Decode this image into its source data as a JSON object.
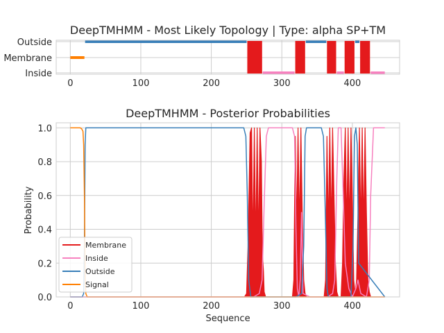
{
  "chart_data": [
    {
      "type": "line",
      "title": "DeepTMHMM - Most Likely Topology | Type: alpha SP+TM",
      "xlabel": "",
      "ylabel": "",
      "xlim": [
        -20,
        467
      ],
      "xticks": [
        0,
        100,
        200,
        300,
        400
      ],
      "categories": [
        "Inside",
        "Membrane",
        "Outside"
      ],
      "grid": true,
      "colors": {
        "Membrane": "#e41a1c",
        "Inside": "#f781bf",
        "Outside": "#377eb8",
        "Signal": "#ff7f00"
      },
      "segments": [
        {
          "label": "Signal",
          "start": 0,
          "end": 20
        },
        {
          "label": "Outside",
          "start": 21,
          "end": 250
        },
        {
          "label": "Membrane",
          "start": 251,
          "end": 272
        },
        {
          "label": "Inside",
          "start": 273,
          "end": 318
        },
        {
          "label": "Membrane",
          "start": 319,
          "end": 333
        },
        {
          "label": "Outside",
          "start": 334,
          "end": 363
        },
        {
          "label": "Membrane",
          "start": 364,
          "end": 377
        },
        {
          "label": "Inside",
          "start": 378,
          "end": 388
        },
        {
          "label": "Membrane",
          "start": 389,
          "end": 403
        },
        {
          "label": "Outside",
          "start": 404,
          "end": 410
        },
        {
          "label": "Membrane",
          "start": 411,
          "end": 425
        },
        {
          "label": "Inside",
          "start": 426,
          "end": 446
        }
      ]
    },
    {
      "type": "line",
      "title": "DeepTMHMM - Posterior Probabilities",
      "xlabel": "Sequence",
      "ylabel": "Probability",
      "xlim": [
        -20,
        467
      ],
      "ylim": [
        0,
        1.03
      ],
      "xticks": [
        0,
        100,
        200,
        300,
        400
      ],
      "yticks": [
        "0.0",
        "0.2",
        "0.4",
        "0.6",
        "0.8",
        "1.0"
      ],
      "grid": true,
      "legend_position": "lower-left",
      "legend": [
        "Membrane",
        "Inside",
        "Outside",
        "Signal"
      ],
      "series": [
        {
          "name": "Membrane",
          "color": "#e41a1c",
          "x": [
            0,
            247,
            250,
            252,
            255,
            257,
            259,
            261,
            263,
            265,
            267,
            269,
            271,
            272,
            273,
            274,
            275,
            277,
            280,
            315,
            317,
            319,
            321,
            323,
            325,
            327,
            329,
            331,
            333,
            335,
            337,
            360,
            362,
            364,
            366,
            368,
            370,
            372,
            374,
            376,
            378,
            380,
            384,
            386,
            388,
            390,
            392,
            394,
            396,
            398,
            400,
            402,
            404,
            406,
            408,
            410,
            412,
            414,
            416,
            418,
            420,
            422,
            424,
            426,
            428,
            430,
            446
          ],
          "y": [
            0,
            0,
            0.02,
            0.3,
            0.97,
            1.0,
            0.3,
            1.0,
            0.3,
            1.0,
            0.3,
            1.0,
            0.8,
            0.4,
            0.22,
            0.15,
            0.03,
            0.0,
            0.0,
            0.0,
            0.1,
            0.95,
            0.4,
            1.0,
            0.4,
            1.0,
            0.5,
            0.1,
            0.02,
            0.0,
            0.0,
            0.0,
            0.1,
            0.95,
            0.4,
            1.0,
            0.4,
            1.0,
            0.6,
            0.2,
            0.03,
            0.0,
            0.0,
            0.2,
            0.7,
            1.0,
            0.4,
            1.0,
            0.4,
            1.0,
            0.6,
            0.1,
            0.02,
            0.1,
            0.5,
            1.0,
            0.4,
            1.0,
            0.4,
            1.0,
            0.5,
            0.1,
            0.03,
            0.0,
            0.0,
            0.0,
            0.0
          ]
        },
        {
          "name": "Inside",
          "color": "#f781bf",
          "x": [
            0,
            260,
            268,
            272,
            275,
            278,
            281,
            285,
            315,
            318,
            320,
            322,
            324,
            326,
            328,
            330,
            340,
            365,
            372,
            375,
            378,
            380,
            384,
            387,
            390,
            395,
            400,
            405,
            408,
            412,
            420,
            424,
            426,
            430,
            446
          ],
          "y": [
            0,
            0,
            0.02,
            0.1,
            0.55,
            0.95,
            1.0,
            1.0,
            1.0,
            0.95,
            0.4,
            0.05,
            0.0,
            0.1,
            0.5,
            0.02,
            0.0,
            0.0,
            0.02,
            0.1,
            0.7,
            1.0,
            1.0,
            0.6,
            0.2,
            0.05,
            0.0,
            0.05,
            0.1,
            0.02,
            0.0,
            0.1,
            0.6,
            1.0,
            1.0
          ]
        },
        {
          "name": "Outside",
          "color": "#377eb8",
          "x": [
            0,
            17,
            19,
            20,
            21,
            22,
            24,
            246,
            249,
            251,
            253,
            256,
            258,
            320,
            328,
            331,
            333,
            335,
            337,
            356,
            359,
            361,
            364,
            366,
            398,
            401,
            403,
            405,
            407,
            409,
            446
          ],
          "y": [
            0,
            0,
            0.02,
            0.3,
            0.9,
            1.0,
            1.0,
            1.0,
            0.95,
            0.6,
            0.1,
            0.0,
            0.0,
            0.0,
            0.02,
            0.3,
            0.95,
            1.0,
            1.0,
            1.0,
            0.95,
            0.6,
            0.05,
            0.0,
            0.0,
            0.3,
            0.95,
            1.0,
            0.9,
            0.2,
            0.0
          ]
        },
        {
          "name": "Signal",
          "color": "#ff7f00",
          "x": [
            0,
            14,
            16,
            18,
            19,
            20,
            21,
            22,
            24,
            446
          ],
          "y": [
            1.0,
            1.0,
            0.995,
            0.98,
            0.9,
            0.6,
            0.12,
            0.02,
            0.0,
            0.0
          ]
        }
      ]
    }
  ]
}
